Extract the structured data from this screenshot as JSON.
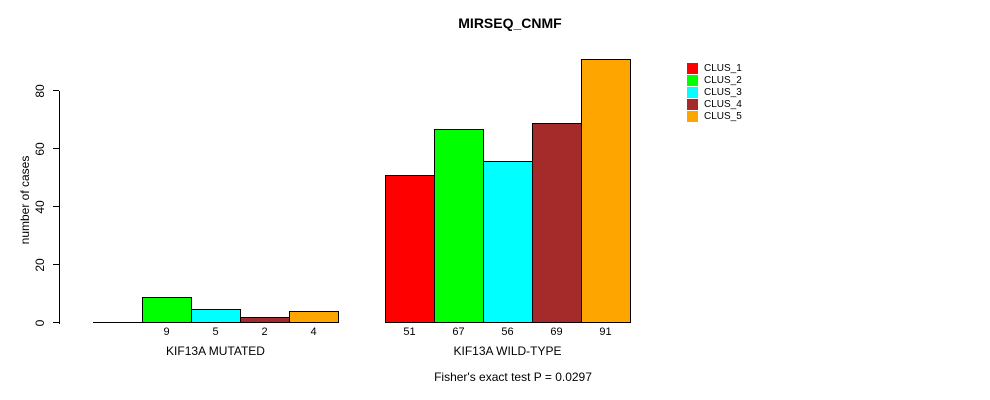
{
  "title": "MIRSEQ_CNMF",
  "y_axis": {
    "label": "number of cases",
    "ticks": [
      "0",
      "20",
      "40",
      "60",
      "80"
    ]
  },
  "annotation": "Fisher's exact test P = 0.0297",
  "chart_data": {
    "type": "bar",
    "title": "MIRSEQ_CNMF",
    "xlabel": "",
    "ylabel": "number of cases",
    "ylim": [
      0,
      91
    ],
    "yticks": [
      0,
      20,
      40,
      60,
      80
    ],
    "grid": false,
    "legend_position": "right",
    "categories": [
      "KIF13A MUTATED",
      "KIF13A WILD-TYPE"
    ],
    "series": [
      {
        "name": "CLUS_1",
        "color": "#FF0000",
        "values": [
          0,
          51
        ]
      },
      {
        "name": "CLUS_2",
        "color": "#00FF00",
        "values": [
          9,
          67
        ]
      },
      {
        "name": "CLUS_3",
        "color": "#00FFFF",
        "values": [
          5,
          56
        ]
      },
      {
        "name": "CLUS_4",
        "color": "#A52A2A",
        "values": [
          2,
          69
        ]
      },
      {
        "name": "CLUS_5",
        "color": "#FFA500",
        "values": [
          4,
          91
        ]
      }
    ],
    "bar_value_labels_shown": true,
    "zero_value_labels_hidden": true,
    "annotation": "Fisher's exact test P = 0.0297"
  }
}
